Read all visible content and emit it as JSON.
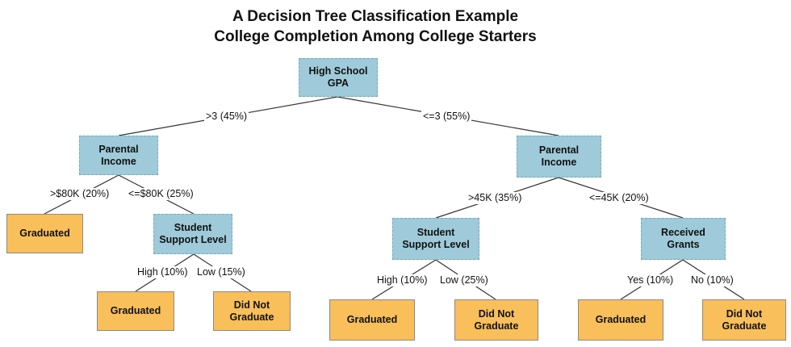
{
  "title": {
    "line1": "A Decision Tree Classification Example",
    "line2": "College Completion Among College Starters"
  },
  "nodes": {
    "root": "High School\nGPA",
    "left_income": "Parental\nIncome",
    "right_income": "Parental\nIncome",
    "left_support": "Student\nSupport Level",
    "right_support": "Student\nSupport Level",
    "grants": "Received\nGrants",
    "leaf_graduated_1": "Graduated",
    "leaf_graduated_2": "Graduated",
    "leaf_not_graduate_1": "Did Not\nGraduate",
    "leaf_graduated_3": "Graduated",
    "leaf_not_graduate_2": "Did Not\nGraduate",
    "leaf_graduated_4": "Graduated",
    "leaf_not_graduate_3": "Did Not\nGraduate"
  },
  "edges": {
    "gpa_high": ">3 (45%)",
    "gpa_low": "<=3 (55%)",
    "left_income_high": ">$80K (20%)",
    "left_income_low": "<=$80K (25%)",
    "left_support_high": "High (10%)",
    "left_support_low": "Low (15%)",
    "right_income_high": ">45K (35%)",
    "right_income_low": "<=45K (20%)",
    "right_support_high": "High (10%)",
    "right_support_low": "Low (25%)",
    "grants_yes": "Yes (10%)",
    "grants_no": "No (10%)"
  },
  "colors": {
    "decision_node": "#9ecad9",
    "leaf_node": "#f8bf5a",
    "edge_line": "#333333"
  }
}
